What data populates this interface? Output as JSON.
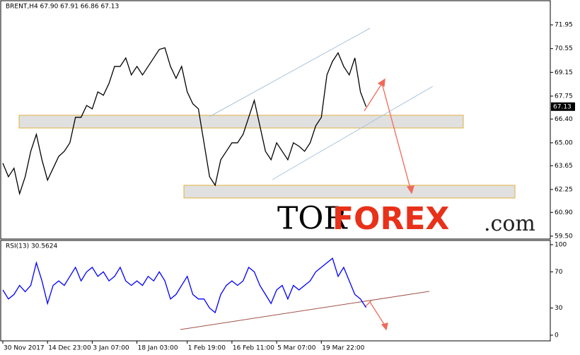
{
  "chart_data": [
    {
      "type": "line",
      "title": "BRENT,H4 67.90 67.91 66.86 67.13",
      "categories": [
        "30 Nov 2017",
        null,
        null,
        null,
        null,
        null,
        null,
        null,
        "14 Dec 23:00",
        null,
        null,
        null,
        null,
        null,
        null,
        null,
        "3 Jan 07:00",
        null,
        null,
        null,
        null,
        null,
        null,
        null,
        "18 Jan 03:00",
        null,
        null,
        null,
        null,
        null,
        null,
        null,
        null,
        "1 Feb 19:00",
        null,
        null,
        null,
        null,
        null,
        null,
        null,
        "16 Feb 11:00",
        null,
        null,
        null,
        null,
        null,
        null,
        null,
        "5 Mar 07:00",
        null,
        null,
        null,
        null,
        null,
        null,
        null,
        "19 Mar 22:00",
        null,
        null,
        null,
        null,
        null,
        null,
        null,
        null
      ],
      "series": [
        {
          "name": "BRENT,H4",
          "color": "#000000",
          "values": [
            63.8,
            63.0,
            63.5,
            62.0,
            63.0,
            64.5,
            65.5,
            64.0,
            62.8,
            63.5,
            64.2,
            64.5,
            65.0,
            66.5,
            66.5,
            67.2,
            67.0,
            68.0,
            67.8,
            68.5,
            69.5,
            69.5,
            70.0,
            69.0,
            69.5,
            69.0,
            69.5,
            70.0,
            70.5,
            70.6,
            69.5,
            68.8,
            69.5,
            68.0,
            67.3,
            67.0,
            65.0,
            63.0,
            62.5,
            64.0,
            64.5,
            65.0,
            65.0,
            65.5,
            66.5,
            67.5,
            66.0,
            64.5,
            64.0,
            65.0,
            64.5,
            64.0,
            65.0,
            64.8,
            64.5,
            65.0,
            66.0,
            66.5,
            69.0,
            69.8,
            70.3,
            69.5,
            69.0,
            70.0,
            68.0,
            67.13
          ]
        }
      ],
      "ylim": [
        59.33,
        73.33
      ],
      "yticks": [
        71.95,
        70.55,
        69.15,
        67.75,
        {
          "value": 66.4,
          "label": "66.40"
        },
        {
          "value": 65,
          "label": "65.00"
        },
        63.65,
        62.25,
        {
          "value": 60.9,
          "label": "60.90"
        },
        {
          "value": 59.5,
          "label": "59.50"
        }
      ]
    },
    {
      "type": "line",
      "title": "RSI(13) 30.5624",
      "series": [
        {
          "name": "RSI(13)",
          "color": "#0000ff",
          "values": [
            50,
            40,
            45,
            55,
            48,
            55,
            80,
            60,
            35,
            55,
            60,
            55,
            65,
            75,
            60,
            70,
            75,
            65,
            70,
            60,
            65,
            75,
            60,
            55,
            60,
            55,
            65,
            60,
            70,
            60,
            40,
            45,
            55,
            65,
            45,
            40,
            40,
            30,
            25,
            45,
            55,
            60,
            55,
            60,
            75,
            70,
            55,
            45,
            35,
            50,
            55,
            40,
            55,
            50,
            55,
            60,
            70,
            75,
            80,
            85,
            65,
            75,
            60,
            45,
            40,
            30.5624
          ]
        }
      ],
      "ylim": [
        -6.25,
        103.9
      ],
      "yticks": [
        100,
        70,
        30,
        0
      ]
    }
  ],
  "watermark": [
    "TOR",
    "FOREX",
    ".com"
  ]
}
